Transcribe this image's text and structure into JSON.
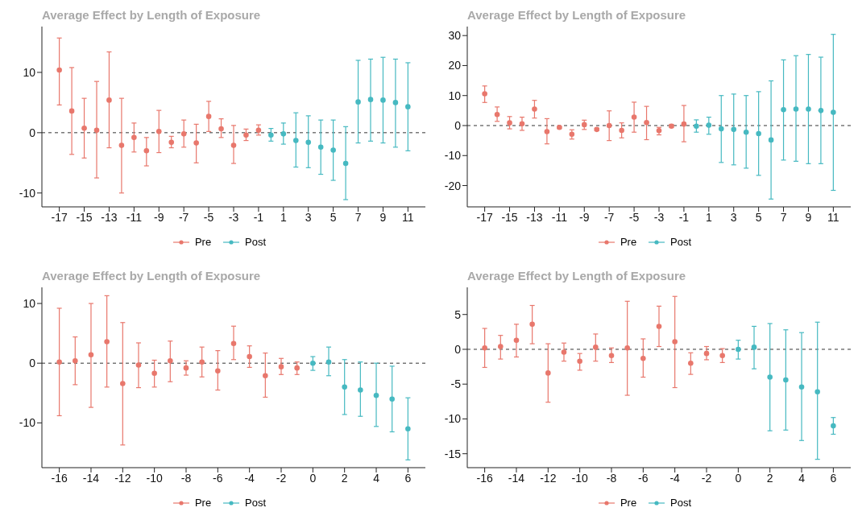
{
  "chart_data": [
    {
      "type": "scatter",
      "title": "Average Effect by Length of Exposure",
      "marker": "circle",
      "grid": false,
      "legend": "bottom",
      "xlim": [
        -18.4,
        12.4
      ],
      "xticks": [
        -17,
        -15,
        -13,
        -11,
        -9,
        -7,
        -5,
        -3,
        -1,
        1,
        3,
        5,
        7,
        9,
        11
      ],
      "ylim": [
        -12.3,
        17.6
      ],
      "yticks": [
        -10,
        0,
        10
      ],
      "ref_lines": [
        {
          "axis": "y",
          "value": 0,
          "line_style": "dashed",
          "color": "#333333"
        }
      ],
      "series": [
        {
          "name": "Pre",
          "color": "#e8776c",
          "x": [
            -17,
            -16,
            -15,
            -14,
            -13,
            -12,
            -11,
            -10,
            -9,
            -8,
            -7,
            -6,
            -5,
            -4,
            -3,
            -2,
            -1
          ],
          "values": [
            10.4,
            3.6,
            0.75,
            0.4,
            5.4,
            -2.1,
            -0.8,
            -3.0,
            0.2,
            -1.6,
            -0.2,
            -1.7,
            2.7,
            0.65,
            -2.1,
            -0.4,
            0.4
          ],
          "errors": [
            [
              4.6,
              15.7
            ],
            [
              -3.6,
              10.8
            ],
            [
              -4.2,
              5.7
            ],
            [
              -7.5,
              8.5
            ],
            [
              -2.5,
              13.4
            ],
            [
              -10,
              5.7
            ],
            [
              -3.2,
              1.6
            ],
            [
              -5.5,
              -0.8
            ],
            [
              -3.3,
              3.7
            ],
            [
              -2.5,
              -0.6
            ],
            [
              -2.4,
              2.1
            ],
            [
              -5.0,
              1.4
            ],
            [
              0.2,
              5.2
            ],
            [
              -0.8,
              2.3
            ],
            [
              -5.1,
              1.2
            ],
            [
              -1.3,
              0.6
            ],
            [
              -0.4,
              1.3
            ]
          ]
        },
        {
          "name": "Post",
          "color": "#46b9c1",
          "x": [
            0,
            1,
            2,
            3,
            4,
            5,
            6,
            7,
            8,
            9,
            10,
            11
          ],
          "values": [
            -0.4,
            -0.2,
            -1.3,
            -1.6,
            -2.4,
            -2.9,
            -5.1,
            5.1,
            5.5,
            5.4,
            5.0,
            4.3
          ],
          "errors": [
            [
              -1.4,
              0.7
            ],
            [
              -1.9,
              1.6
            ],
            [
              -5.7,
              3.3
            ],
            [
              -5.8,
              2.8
            ],
            [
              -6.9,
              2.1
            ],
            [
              -7.9,
              2.1
            ],
            [
              -11.1,
              1.0
            ],
            [
              -1.7,
              12.0
            ],
            [
              -1.4,
              12.2
            ],
            [
              -1.7,
              12.5
            ],
            [
              -2.4,
              12.2
            ],
            [
              -3.0,
              11.6
            ]
          ]
        }
      ]
    },
    {
      "type": "scatter",
      "title": "Average Effect by Length of Exposure",
      "marker": "circle",
      "grid": false,
      "legend": "bottom",
      "xlim": [
        -18.4,
        12.4
      ],
      "xticks": [
        -17,
        -15,
        -13,
        -11,
        -9,
        -7,
        -5,
        -3,
        -1,
        1,
        3,
        5,
        7,
        9,
        11
      ],
      "ylim": [
        -27.1,
        33
      ],
      "yticks": [
        -20,
        -10,
        0,
        10,
        20,
        30
      ],
      "ref_lines": [
        {
          "axis": "y",
          "value": 0,
          "line_style": "dashed",
          "color": "#333333"
        }
      ],
      "series": [
        {
          "name": "Pre",
          "color": "#e8776c",
          "x": [
            -17,
            -16,
            -15,
            -14,
            -13,
            -12,
            -11,
            -10,
            -9,
            -8,
            -7,
            -6,
            -5,
            -4,
            -3,
            -2,
            -1
          ],
          "values": [
            10.6,
            3.7,
            0.9,
            0.6,
            5.5,
            -2.0,
            -0.6,
            -2.9,
            0.3,
            -1.3,
            0,
            -1.6,
            2.8,
            1.0,
            -1.7,
            -0.2,
            0.5
          ],
          "errors": [
            [
              7.7,
              13.2
            ],
            [
              1.4,
              6.2
            ],
            [
              -1.1,
              3.0
            ],
            [
              -1.6,
              2.8
            ],
            [
              2.5,
              8.4
            ],
            [
              -6.1,
              2.3
            ],
            [
              -1.0,
              -0.3
            ],
            [
              -4.5,
              -1.4
            ],
            [
              -1.3,
              1.8
            ],
            [
              -1.7,
              -0.9
            ],
            [
              -5.0,
              4.9
            ],
            [
              -4.1,
              0.9
            ],
            [
              -2.2,
              7.8
            ],
            [
              -4.7,
              6.4
            ],
            [
              -3.1,
              -0.6
            ],
            [
              -0.6,
              0.4
            ],
            [
              -5.4,
              6.7
            ]
          ]
        },
        {
          "name": "Post",
          "color": "#46b9c1",
          "x": [
            0,
            1,
            2,
            3,
            4,
            5,
            6,
            7,
            8,
            9,
            10,
            11
          ],
          "values": [
            -0.2,
            0.1,
            -1.1,
            -1.3,
            -2.2,
            -2.7,
            -4.8,
            5.3,
            5.5,
            5.5,
            5.0,
            4.4
          ],
          "errors": [
            [
              -2.2,
              1.9
            ],
            [
              -2.9,
              2.8
            ],
            [
              -12.3,
              10.0
            ],
            [
              -13.1,
              10.5
            ],
            [
              -14.2,
              10.0
            ],
            [
              -16.6,
              11.3
            ],
            [
              -24.5,
              14.9
            ],
            [
              -11.5,
              21.9
            ],
            [
              -11.9,
              23.3
            ],
            [
              -12.7,
              23.7
            ],
            [
              -12.7,
              22.8
            ],
            [
              -21.6,
              30.4
            ]
          ]
        }
      ]
    },
    {
      "type": "scatter",
      "title": "Average Effect by Length of Exposure",
      "marker": "circle",
      "grid": false,
      "legend": "bottom",
      "xlim": [
        -17.1,
        7.1
      ],
      "xticks": [
        -16,
        -14,
        -12,
        -10,
        -8,
        -6,
        -4,
        -2,
        0,
        2,
        4,
        6
      ],
      "ylim": [
        -17.5,
        12.7
      ],
      "yticks": [
        -10,
        0,
        10
      ],
      "ref_lines": [
        {
          "axis": "y",
          "value": 0,
          "line_style": "dashed",
          "color": "#333333"
        }
      ],
      "series": [
        {
          "name": "Pre",
          "color": "#e8776c",
          "x": [
            -16,
            -15,
            -14,
            -13,
            -12,
            -11,
            -10,
            -9,
            -8,
            -7,
            -6,
            -5,
            -4,
            -3,
            -2,
            -1
          ],
          "values": [
            0.2,
            0.4,
            1.4,
            3.6,
            -3.4,
            -0.3,
            -1.7,
            0.4,
            -0.8,
            0.2,
            -1.3,
            3.3,
            1.1,
            -2.1,
            -0.6,
            -0.8
          ],
          "errors": [
            [
              -8.8,
              9.2
            ],
            [
              -3.6,
              4.4
            ],
            [
              -7.4,
              10.0
            ],
            [
              -4.0,
              11.3
            ],
            [
              -13.7,
              6.8
            ],
            [
              -4.1,
              3.4
            ],
            [
              -4.0,
              0.5
            ],
            [
              -3.1,
              3.7
            ],
            [
              -2.0,
              0.4
            ],
            [
              -2.3,
              2.7
            ],
            [
              -4.5,
              2.1
            ],
            [
              0.6,
              6.2
            ],
            [
              -0.7,
              2.9
            ],
            [
              -5.7,
              1.7
            ],
            [
              -1.9,
              0.8
            ],
            [
              -1.9,
              0.2
            ]
          ]
        },
        {
          "name": "Post",
          "color": "#46b9c1",
          "x": [
            0,
            1,
            2,
            3,
            4,
            5,
            6
          ],
          "values": [
            0,
            0.2,
            -4.0,
            -4.5,
            -5.4,
            -6.0,
            -11.0
          ],
          "errors": [
            [
              -1.2,
              1.1
            ],
            [
              -2.1,
              2.7
            ],
            [
              -8.6,
              0.6
            ],
            [
              -8.9,
              0.2
            ],
            [
              -10.6,
              0
            ],
            [
              -11.5,
              -0.5
            ],
            [
              -16.2,
              -5.8
            ]
          ]
        }
      ]
    },
    {
      "type": "scatter",
      "title": "Average Effect by Length of Exposure",
      "marker": "circle",
      "grid": false,
      "legend": "bottom",
      "xlim": [
        -17.1,
        7.1
      ],
      "xticks": [
        -16,
        -14,
        -12,
        -10,
        -8,
        -6,
        -4,
        -2,
        0,
        2,
        4,
        6
      ],
      "ylim": [
        -17,
        8.9
      ],
      "yticks": [
        -15,
        -10,
        -5,
        0,
        5
      ],
      "ref_lines": [
        {
          "axis": "y",
          "value": 0,
          "line_style": "dashed",
          "color": "#333333"
        }
      ],
      "series": [
        {
          "name": "Pre",
          "color": "#e8776c",
          "x": [
            -16,
            -15,
            -14,
            -13,
            -12,
            -11,
            -10,
            -9,
            -8,
            -7,
            -6,
            -5,
            -4,
            -3,
            -2,
            -1
          ],
          "values": [
            0.2,
            0.4,
            1.3,
            3.6,
            -3.4,
            -0.4,
            -1.7,
            0.3,
            -0.9,
            0.2,
            -1.3,
            3.3,
            1.1,
            -2.0,
            -0.6,
            -0.9
          ],
          "errors": [
            [
              -2.6,
              3.0
            ],
            [
              -1.4,
              2.0
            ],
            [
              -1.1,
              3.6
            ],
            [
              0.8,
              6.3
            ],
            [
              -7.6,
              0.8
            ],
            [
              -1.7,
              0.9
            ],
            [
              -3.0,
              -0.6
            ],
            [
              -1.7,
              2.2
            ],
            [
              -1.9,
              0.2
            ],
            [
              -6.6,
              6.9
            ],
            [
              -4.0,
              1.5
            ],
            [
              0.4,
              6.2
            ],
            [
              -5.5,
              7.6
            ],
            [
              -3.6,
              -0.5
            ],
            [
              -1.5,
              0.4
            ],
            [
              -1.9,
              0.1
            ]
          ]
        },
        {
          "name": "Post",
          "color": "#46b9c1",
          "x": [
            0,
            1,
            2,
            3,
            4,
            5,
            6
          ],
          "values": [
            0,
            0.3,
            -4.0,
            -4.4,
            -5.4,
            -6.1,
            -11.0
          ],
          "errors": [
            [
              -1.4,
              1.3
            ],
            [
              -2.8,
              3.3
            ],
            [
              -11.7,
              3.7
            ],
            [
              -11.6,
              2.8
            ],
            [
              -13.1,
              2.4
            ],
            [
              -15.8,
              3.9
            ],
            [
              -12.2,
              -9.8
            ]
          ]
        }
      ]
    }
  ]
}
